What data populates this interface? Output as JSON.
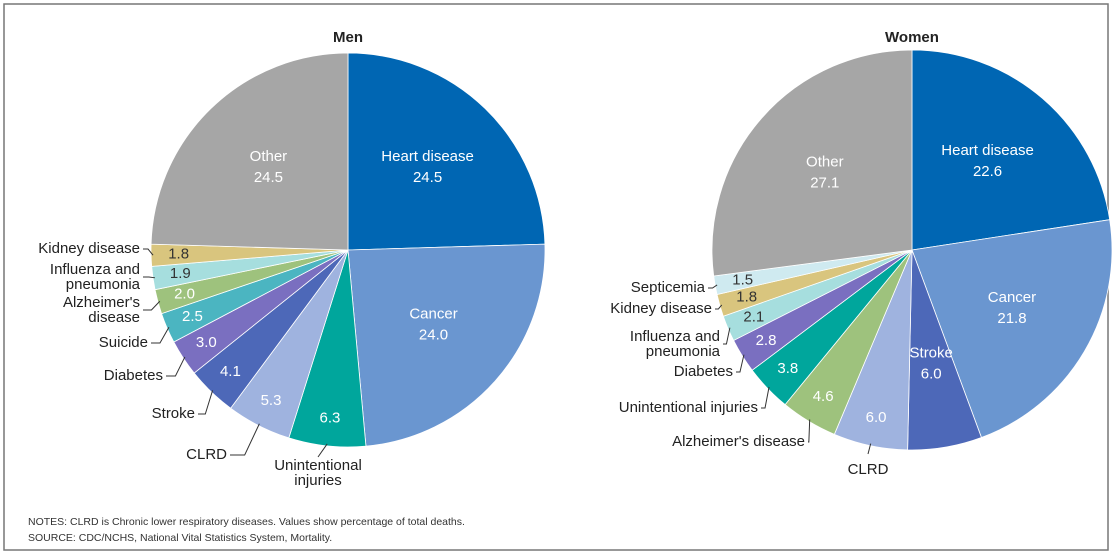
{
  "chart_data": [
    {
      "type": "pie",
      "title": "Men",
      "categories": [
        "Heart disease",
        "Cancer",
        "Unintentional injuries",
        "CLRD",
        "Stroke",
        "Diabetes",
        "Suicide",
        "Alzheimer's disease",
        "Influenza and pneumonia",
        "Kidney disease",
        "Other"
      ],
      "values": [
        24.5,
        24.0,
        6.3,
        5.3,
        4.1,
        3.0,
        2.5,
        2.0,
        1.9,
        1.8,
        24.5
      ],
      "value_labels": [
        "24.5",
        "24.0",
        "6.3",
        "5.3",
        "4.1",
        "3.0",
        "2.5",
        "2.0",
        "1.9",
        "1.8",
        "24.5"
      ],
      "colors": [
        "#0066b3",
        "#6a96d0",
        "#00a69c",
        "#9fb3df",
        "#4d68b8",
        "#7a6fc0",
        "#4bb5c1",
        "#9ec27d",
        "#a6dede",
        "#d9c57e",
        "#a6a6a6"
      ]
    },
    {
      "type": "pie",
      "title": "Women",
      "categories": [
        "Heart disease",
        "Cancer",
        "Stroke",
        "CLRD",
        "Alzheimer's disease",
        "Unintentional injuries",
        "Diabetes",
        "Influenza and pneumonia",
        "Kidney disease",
        "Septicemia",
        "Other"
      ],
      "values": [
        22.6,
        21.8,
        6.0,
        6.0,
        4.6,
        3.8,
        2.8,
        2.1,
        1.8,
        1.5,
        27.1
      ],
      "value_labels": [
        "22.6",
        "21.8",
        "6.0",
        "6.0",
        "4.6",
        "3.8",
        "2.8",
        "2.1",
        "1.8",
        "1.5",
        "27.1"
      ],
      "colors": [
        "#0066b3",
        "#6a96d0",
        "#4d68b8",
        "#9fb3df",
        "#9ec27d",
        "#00a69c",
        "#7a6fc0",
        "#a6dede",
        "#d9c57e",
        "#cfeaf0",
        "#a6a6a6"
      ]
    }
  ],
  "notes": [
    "NOTES: CLRD is Chronic lower respiratory diseases. Values show percentage of total deaths.",
    "SOURCE: CDC/NCHS, National Vital Statistics System, Mortality."
  ]
}
